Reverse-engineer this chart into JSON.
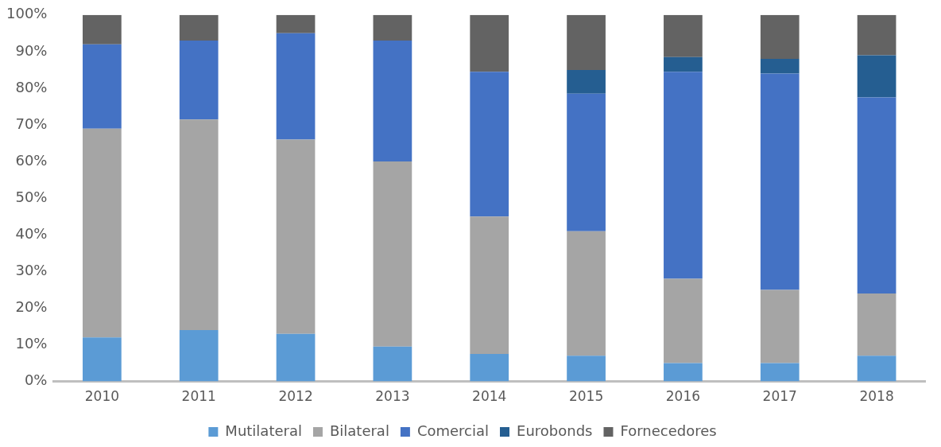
{
  "chart_data": {
    "type": "bar",
    "stacked": true,
    "categories": [
      "2010",
      "2011",
      "2012",
      "2013",
      "2014",
      "2015",
      "2016",
      "2017",
      "2018"
    ],
    "series": [
      {
        "name": "Mutilateral",
        "color": "#5b9bd5",
        "values": [
          12,
          14,
          13,
          9.5,
          7.5,
          7,
          5,
          5,
          7
        ]
      },
      {
        "name": "Bilateral",
        "color": "#a5a5a5",
        "values": [
          57,
          57.5,
          53,
          50.5,
          37.5,
          34,
          23,
          20,
          17
        ]
      },
      {
        "name": "Comercial",
        "color": "#4472c4",
        "values": [
          23,
          21.5,
          29,
          33,
          39.5,
          37.5,
          56.5,
          59,
          53.5
        ]
      },
      {
        "name": "Eurobonds",
        "color": "#255e91",
        "values": [
          0,
          0,
          0,
          0,
          0,
          6.5,
          4,
          4,
          11.5
        ]
      },
      {
        "name": "Fornecedores",
        "color": "#636363",
        "values": [
          8,
          7,
          5,
          7,
          15.5,
          15,
          11.5,
          12,
          11
        ]
      }
    ],
    "ylim": [
      0,
      100
    ],
    "yticks": [
      {
        "value": 0,
        "label": "0%"
      },
      {
        "value": 10,
        "label": "10%"
      },
      {
        "value": 20,
        "label": "20%"
      },
      {
        "value": 30,
        "label": "30%"
      },
      {
        "value": 40,
        "label": "40%"
      },
      {
        "value": 50,
        "label": "50%"
      },
      {
        "value": 60,
        "label": "60%"
      },
      {
        "value": 70,
        "label": "70%"
      },
      {
        "value": 80,
        "label": "80%"
      },
      {
        "value": 90,
        "label": "90%"
      },
      {
        "value": 100,
        "label": "100%"
      }
    ],
    "grid": false,
    "legend": "bottom"
  }
}
